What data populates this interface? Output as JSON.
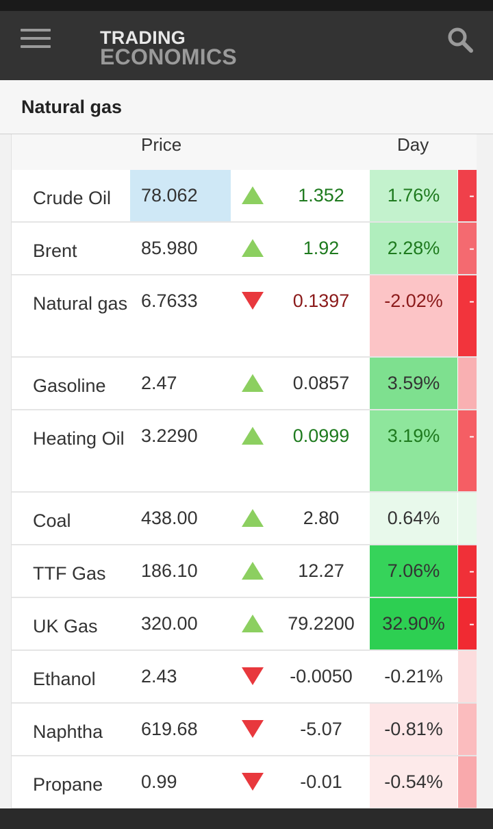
{
  "header": {
    "logo_line1": "TRADING",
    "logo_line2": "ECONOMICS",
    "menu_icon": "hamburger-menu-icon",
    "search_icon": "search-icon"
  },
  "page": {
    "title": "Natural gas"
  },
  "table": {
    "columns": {
      "price": "Price",
      "day": "Day"
    },
    "colors": {
      "up_arrow": "#8ccf60",
      "down_arrow": "#e8383d",
      "price_highlight": "#cfe8f6"
    },
    "rows": [
      {
        "name": "Crude Oil",
        "price": "78.062",
        "direction": "up",
        "change": "1.352",
        "change_color": "pos",
        "day": "1.76%",
        "day_bg": "#c3f2cd",
        "extra_bg": "#f0404a",
        "extra_text": "-"
      },
      {
        "name": "Brent",
        "price": "85.980",
        "direction": "up",
        "change": "1.92",
        "change_color": "pos",
        "day": "2.28%",
        "day_bg": "#b0eebd",
        "extra_bg": "#f46a70",
        "extra_text": "-"
      },
      {
        "name": "Natural gas",
        "price": "6.7633",
        "direction": "down",
        "change": "0.1397",
        "change_color": "neg",
        "day": "-2.02%",
        "day_bg": "#fcc4c6",
        "extra_bg": "#f2343c",
        "extra_text": "-"
      },
      {
        "name": "Gasoline",
        "price": "2.47",
        "direction": "up",
        "change": "0.0857",
        "change_color": "plain",
        "day": "3.59%",
        "day_bg": "#7ee08f",
        "extra_bg": "#f9b0b2",
        "extra_text": ""
      },
      {
        "name": "Heating Oil",
        "price": "3.2290",
        "direction": "up",
        "change": "0.0999",
        "change_color": "pos",
        "day": "3.19%",
        "day_bg": "#8ee69c",
        "extra_bg": "#f55e64",
        "extra_text": "-"
      },
      {
        "name": "Coal",
        "price": "438.00",
        "direction": "up",
        "change": "2.80",
        "change_color": "plain",
        "day": "0.64%",
        "day_bg": "#e8f9eb",
        "extra_bg": "#e8f9eb",
        "extra_text": ""
      },
      {
        "name": "TTF Gas",
        "price": "186.10",
        "direction": "up",
        "change": "12.27",
        "change_color": "plain",
        "day": "7.06%",
        "day_bg": "#36d35a",
        "extra_bg": "#f03038",
        "extra_text": "-"
      },
      {
        "name": "UK Gas",
        "price": "320.00",
        "direction": "up",
        "change": "79.2200",
        "change_color": "plain",
        "day": "32.90%",
        "day_bg": "#2dcf52",
        "extra_bg": "#f02a32",
        "extra_text": "-"
      },
      {
        "name": "Ethanol",
        "price": "2.43",
        "direction": "down",
        "change": "-0.0050",
        "change_color": "plain",
        "day": "-0.21%",
        "day_bg": "#ffffff",
        "extra_bg": "#fcdcdd",
        "extra_text": ""
      },
      {
        "name": "Naphtha",
        "price": "619.68",
        "direction": "down",
        "change": "-5.07",
        "change_color": "plain",
        "day": "-0.81%",
        "day_bg": "#fde6e7",
        "extra_bg": "#fbbcbe",
        "extra_text": ""
      },
      {
        "name": "Propane",
        "price": "0.99",
        "direction": "down",
        "change": "-0.01",
        "change_color": "plain",
        "day": "-0.54%",
        "day_bg": "#fdeaea",
        "extra_bg": "#f9a9ac",
        "extra_text": ""
      }
    ]
  }
}
